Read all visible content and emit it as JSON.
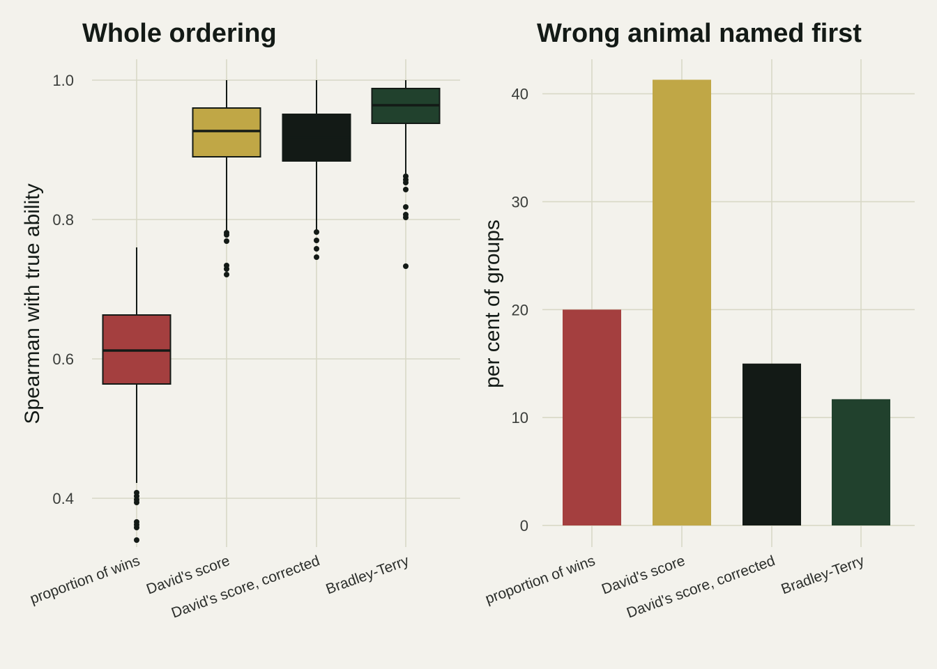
{
  "chart_data": [
    {
      "type": "box",
      "title": "Whole ordering",
      "xlabel": "",
      "ylabel": "Spearman with true ability",
      "ylim": [
        0.33,
        1.03
      ],
      "yticks": [
        "0.4",
        "0.6",
        "0.8",
        "1.0"
      ],
      "grid": true,
      "legend": "none",
      "categories": [
        "proportion of wins",
        "David's score",
        "David's score, corrected",
        "Bradley-Terry"
      ],
      "boxes": [
        {
          "q1": 0.564,
          "median": 0.612,
          "q3": 0.663,
          "whisker_low": 0.422,
          "whisker_high": 0.76,
          "outliers": [
            0.408,
            0.403,
            0.398,
            0.394,
            0.366,
            0.362,
            0.358,
            0.34
          ],
          "color": "#a43f3f"
        },
        {
          "q1": 0.89,
          "median": 0.927,
          "q3": 0.96,
          "whisker_low": 0.785,
          "whisker_high": 1.0,
          "outliers": [
            0.781,
            0.778,
            0.769,
            0.734,
            0.729,
            0.721
          ],
          "color": "#c0a746"
        },
        {
          "q1": 0.884,
          "median": 0.918,
          "q3": 0.951,
          "whisker_low": 0.785,
          "whisker_high": 1.0,
          "outliers": [
            0.782,
            0.77,
            0.758,
            0.746
          ],
          "color": "#131a16"
        },
        {
          "q1": 0.938,
          "median": 0.964,
          "q3": 0.988,
          "whisker_low": 0.866,
          "whisker_high": 1.0,
          "outliers": [
            0.862,
            0.857,
            0.853,
            0.843,
            0.818,
            0.807,
            0.803,
            0.733
          ],
          "color": "#21412d"
        }
      ]
    },
    {
      "type": "bar",
      "title": "Wrong animal named first",
      "xlabel": "",
      "ylabel": "per cent of groups",
      "ylim": [
        -2,
        43.2
      ],
      "yticks": [
        "0",
        "10",
        "20",
        "30",
        "40"
      ],
      "grid": true,
      "legend": "none",
      "categories": [
        "proportion of wins",
        "David's score",
        "David's score, corrected",
        "Bradley-Terry"
      ],
      "values": [
        20.0,
        41.3,
        15.0,
        11.7
      ],
      "colors": [
        "#a43f3f",
        "#c0a746",
        "#131a16",
        "#21412d"
      ]
    }
  ]
}
